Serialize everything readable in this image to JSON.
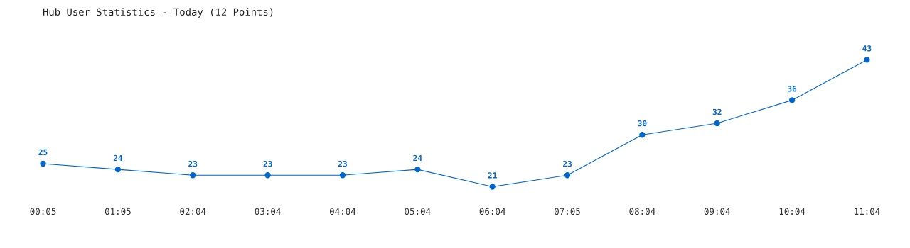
{
  "chart_data": {
    "type": "line",
    "title": "Hub User Statistics - Today (12 Points)",
    "categories": [
      "00:05",
      "01:05",
      "02:04",
      "03:04",
      "04:04",
      "05:04",
      "06:04",
      "07:05",
      "08:04",
      "09:04",
      "10:04",
      "11:04"
    ],
    "series": [
      {
        "color": "#0066cc",
        "values": [
          25,
          24,
          23,
          23,
          23,
          24,
          21,
          23,
          30,
          32,
          36,
          43
        ]
      }
    ],
    "data_labels": true,
    "marker": "circle",
    "grid": false,
    "legend": false,
    "tick_labels": "x"
  }
}
